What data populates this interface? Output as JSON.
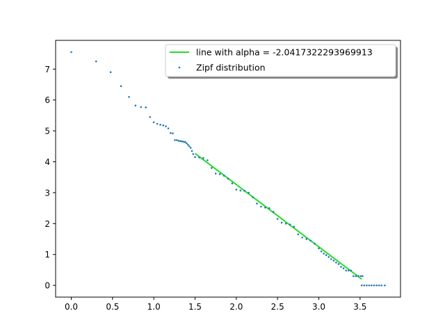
{
  "chart_data": {
    "type": "scatter",
    "title": "",
    "xlabel": "",
    "ylabel": "",
    "xlim": [
      -0.19,
      3.99
    ],
    "ylim": [
      -0.38,
      7.93
    ],
    "x_ticks": [
      "0.0",
      "0.5",
      "1.0",
      "1.5",
      "2.0",
      "2.5",
      "3.0",
      "3.5"
    ],
    "y_ticks": [
      "0",
      "1",
      "2",
      "3",
      "4",
      "5",
      "6",
      "7"
    ],
    "grid": false,
    "legend": {
      "placement": "top-right",
      "entries": [
        "line with alpha = -2.0417322293969913",
        "Zipf distribution"
      ]
    },
    "series": [
      {
        "name": "Zipf distribution",
        "kind": "scatter",
        "color": "#1f77b4",
        "points": [
          [
            0.0,
            7.55
          ],
          [
            0.301,
            7.25
          ],
          [
            0.477,
            6.9
          ],
          [
            0.602,
            6.45
          ],
          [
            0.699,
            6.1
          ],
          [
            0.778,
            5.82
          ],
          [
            0.845,
            5.77
          ],
          [
            0.903,
            5.76
          ],
          [
            0.954,
            5.45
          ],
          [
            1.0,
            5.28
          ],
          [
            1.041,
            5.23
          ],
          [
            1.079,
            5.2
          ],
          [
            1.114,
            5.18
          ],
          [
            1.146,
            5.15
          ],
          [
            1.176,
            5.08
          ],
          [
            1.204,
            4.93
          ],
          [
            1.23,
            4.92
          ],
          [
            1.255,
            4.7
          ],
          [
            1.279,
            4.7
          ],
          [
            1.301,
            4.68
          ],
          [
            1.322,
            4.67
          ],
          [
            1.342,
            4.66
          ],
          [
            1.362,
            4.65
          ],
          [
            1.38,
            4.64
          ],
          [
            1.398,
            4.6
          ],
          [
            1.415,
            4.55
          ],
          [
            1.431,
            4.5
          ],
          [
            1.447,
            4.45
          ],
          [
            1.462,
            4.35
          ],
          [
            1.477,
            4.25
          ],
          [
            1.5,
            4.15
          ],
          [
            1.55,
            4.14
          ],
          [
            1.6,
            4.12
          ],
          [
            1.65,
            4.05
          ],
          [
            1.7,
            3.8
          ],
          [
            1.75,
            3.62
          ],
          [
            1.8,
            3.6
          ],
          [
            1.85,
            3.55
          ],
          [
            1.9,
            3.45
          ],
          [
            1.95,
            3.3
          ],
          [
            2.0,
            3.1
          ],
          [
            2.05,
            3.07
          ],
          [
            2.1,
            3.06
          ],
          [
            2.15,
            3.0
          ],
          [
            2.2,
            2.85
          ],
          [
            2.25,
            2.65
          ],
          [
            2.3,
            2.55
          ],
          [
            2.35,
            2.52
          ],
          [
            2.4,
            2.5
          ],
          [
            2.45,
            2.38
          ],
          [
            2.5,
            2.15
          ],
          [
            2.55,
            2.03
          ],
          [
            2.6,
            2.0
          ],
          [
            2.65,
            1.97
          ],
          [
            2.7,
            1.9
          ],
          [
            2.75,
            1.65
          ],
          [
            2.8,
            1.55
          ],
          [
            2.85,
            1.5
          ],
          [
            2.9,
            1.45
          ],
          [
            2.95,
            1.35
          ],
          [
            3.0,
            1.2
          ],
          [
            3.03,
            1.1
          ],
          [
            3.06,
            1.03
          ],
          [
            3.09,
            0.98
          ],
          [
            3.12,
            0.92
          ],
          [
            3.15,
            0.85
          ],
          [
            3.18,
            0.8
          ],
          [
            3.21,
            0.74
          ],
          [
            3.24,
            0.69
          ],
          [
            3.27,
            0.6
          ],
          [
            3.3,
            0.55
          ],
          [
            3.33,
            0.48
          ],
          [
            3.36,
            0.48
          ],
          [
            3.39,
            0.48
          ],
          [
            3.42,
            0.3
          ],
          [
            3.45,
            0.3
          ],
          [
            3.48,
            0.3
          ],
          [
            3.51,
            0.3
          ],
          [
            3.53,
            0.3
          ],
          [
            3.52,
            0.0
          ],
          [
            3.55,
            0.0
          ],
          [
            3.58,
            0.0
          ],
          [
            3.61,
            0.0
          ],
          [
            3.64,
            0.0
          ],
          [
            3.67,
            0.0
          ],
          [
            3.7,
            0.0
          ],
          [
            3.73,
            0.0
          ],
          [
            3.76,
            0.0
          ],
          [
            3.8,
            0.0
          ]
        ]
      },
      {
        "name": "line with alpha = -2.0417322293969913",
        "kind": "line",
        "color": "#22dd22",
        "points": [
          [
            1.5,
            4.27
          ],
          [
            3.52,
            0.2
          ]
        ]
      }
    ]
  }
}
